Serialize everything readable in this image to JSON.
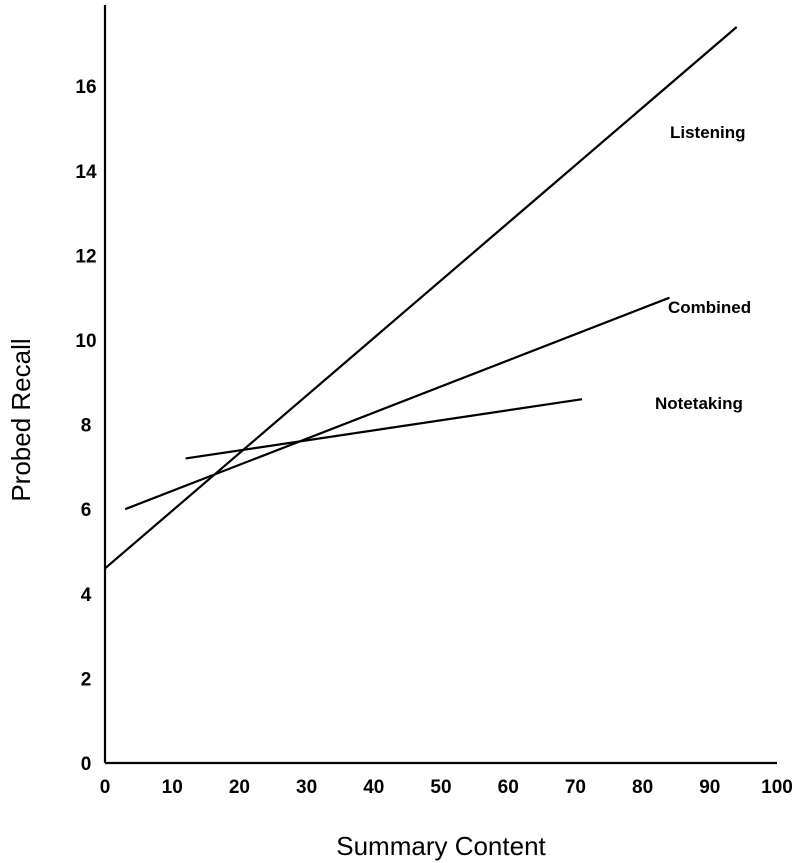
{
  "chart_data": {
    "type": "line",
    "title": "",
    "xlabel": "Summary Content",
    "ylabel": "Probed Recall",
    "xlim": [
      0,
      100
    ],
    "ylim": [
      0,
      17.8
    ],
    "x_ticks": [
      0,
      10,
      20,
      30,
      40,
      50,
      60,
      70,
      80,
      90,
      100
    ],
    "y_ticks": [
      0,
      2,
      4,
      6,
      8,
      10,
      12,
      14,
      16
    ],
    "grid": false,
    "legend": "none",
    "series": [
      {
        "name": "Listening",
        "x": [
          0,
          94
        ],
        "y": [
          4.6,
          17.4
        ],
        "color": "#000000"
      },
      {
        "name": "Combined",
        "x": [
          3,
          84
        ],
        "y": [
          6.0,
          11.0
        ],
        "color": "#000000"
      },
      {
        "name": "Notetaking",
        "x": [
          12,
          71
        ],
        "y": [
          7.2,
          8.6
        ],
        "color": "#000000"
      }
    ]
  }
}
